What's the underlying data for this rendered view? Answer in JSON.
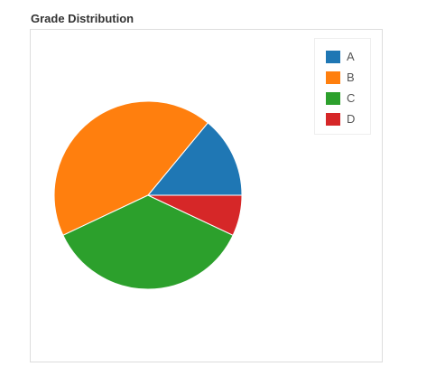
{
  "chart_data": {
    "type": "pie",
    "title": "Grade Distribution",
    "categories": [
      "A",
      "B",
      "C",
      "D"
    ],
    "values": [
      14,
      43,
      36,
      7
    ],
    "colors": [
      "#1f77b4",
      "#ff7f0e",
      "#2ca02c",
      "#d62728"
    ],
    "legend_position": "top-right",
    "start_angle": "3 o'clock, counter-clockwise"
  }
}
